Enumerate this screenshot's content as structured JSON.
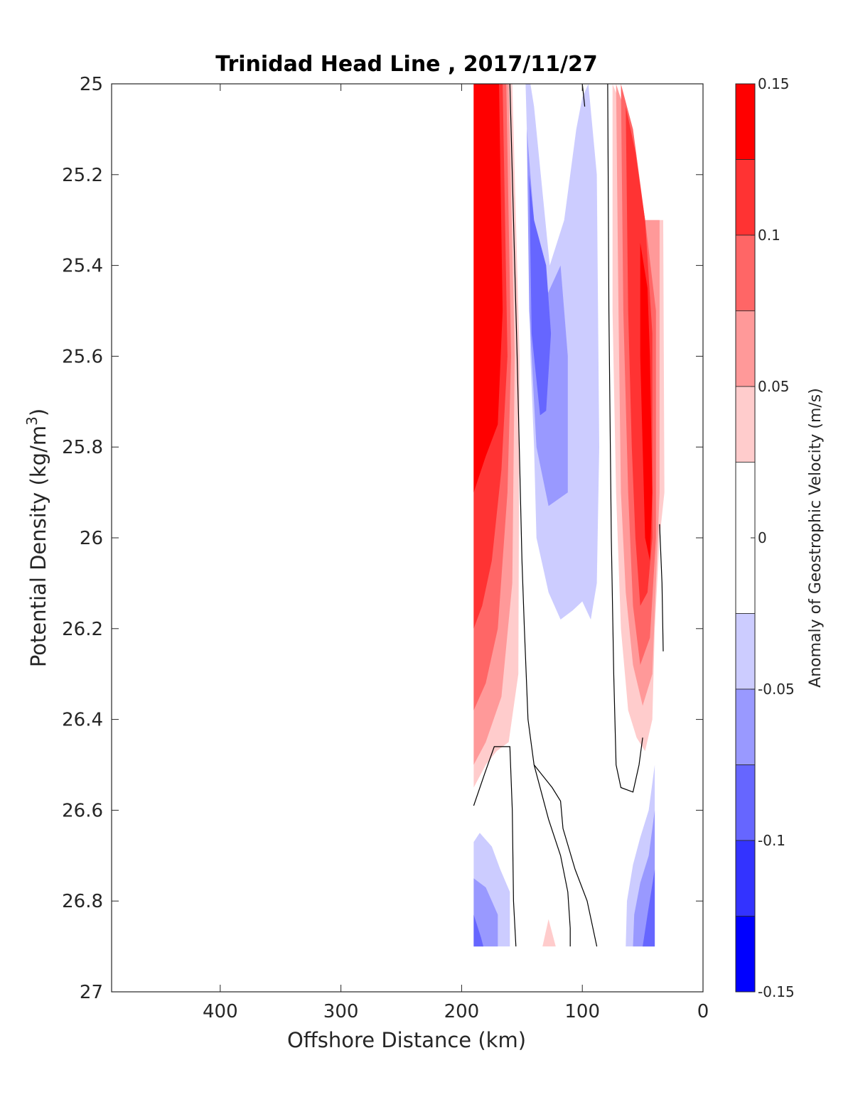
{
  "chart_data": {
    "type": "heatmap",
    "title": "Trinidad Head Line , 2017/11/27",
    "xlabel": "Offshore Distance (km)",
    "ylabel": "Potential Density (kg/m",
    "ylabel_superscript": "3",
    "ylabel_close": ")",
    "colorbar_label": "Anomaly of Geostrophic Velocity (m/s)",
    "xlim": [
      490,
      0
    ],
    "ylim": [
      25,
      27
    ],
    "y_reversed": true,
    "grid": false,
    "x_ticks": [
      400,
      300,
      200,
      100,
      0
    ],
    "y_ticks": [
      25,
      25.2,
      25.4,
      25.6,
      25.8,
      26,
      26.2,
      26.4,
      26.6,
      26.8,
      27
    ],
    "x_tick_labels": [
      "400",
      "300",
      "200",
      "100",
      "0"
    ],
    "y_tick_labels": [
      "25",
      "25.2",
      "25.4",
      "25.6",
      "25.8",
      "26",
      "26.2",
      "26.4",
      "26.6",
      "26.8",
      "27"
    ],
    "colorbar": {
      "range": [
        -0.15,
        0.15
      ],
      "levels": [
        -0.15,
        -0.125,
        -0.1,
        -0.075,
        -0.05,
        -0.025,
        0.025,
        0.05,
        0.075,
        0.1,
        0.125,
        0.15
      ],
      "tick_labels": [
        "0.15",
        "0.1",
        "0.05",
        "0",
        "-0.05",
        "-0.1",
        "-0.15"
      ],
      "tick_values": [
        0.15,
        0.1,
        0.05,
        0,
        -0.05,
        -0.1,
        -0.15
      ],
      "bands": [
        {
          "from": 0.125,
          "to": 0.15,
          "color": "#ff0000"
        },
        {
          "from": 0.1,
          "to": 0.125,
          "color": "#ff3333"
        },
        {
          "from": 0.075,
          "to": 0.1,
          "color": "#ff6666"
        },
        {
          "from": 0.05,
          "to": 0.075,
          "color": "#ff9999"
        },
        {
          "from": 0.025,
          "to": 0.05,
          "color": "#ffcccc"
        },
        {
          "from": -0.025,
          "to": 0.025,
          "color": "#ffffff"
        },
        {
          "from": -0.05,
          "to": -0.025,
          "color": "#ccccff"
        },
        {
          "from": -0.075,
          "to": -0.05,
          "color": "#9999ff"
        },
        {
          "from": -0.1,
          "to": -0.075,
          "color": "#6666ff"
        },
        {
          "from": -0.125,
          "to": -0.1,
          "color": "#3333ff"
        },
        {
          "from": -0.15,
          "to": -0.125,
          "color": "#0000ff"
        }
      ]
    },
    "regions": [
      {
        "name": "offshore-positive-band",
        "color": "#ffcccc",
        "points": [
          [
            190,
            25
          ],
          [
            158,
            25
          ],
          [
            152,
            25.6
          ],
          [
            153,
            26.3
          ],
          [
            161,
            26.45
          ],
          [
            171,
            26.47
          ],
          [
            180,
            26.5
          ],
          [
            190,
            26.55
          ]
        ]
      },
      {
        "name": "offshore-positive-band",
        "color": "#ff9999",
        "points": [
          [
            190,
            25
          ],
          [
            161,
            25
          ],
          [
            156,
            25.6
          ],
          [
            158,
            26.1
          ],
          [
            167,
            26.35
          ],
          [
            180,
            26.45
          ],
          [
            190,
            26.5
          ]
        ]
      },
      {
        "name": "offshore-positive-band",
        "color": "#ff6666",
        "points": [
          [
            190,
            25
          ],
          [
            163,
            25
          ],
          [
            159,
            25.6
          ],
          [
            162,
            25.9
          ],
          [
            170,
            26.2
          ],
          [
            180,
            26.32
          ],
          [
            190,
            26.38
          ]
        ]
      },
      {
        "name": "offshore-positive-band",
        "color": "#ff3333",
        "points": [
          [
            190,
            25
          ],
          [
            166,
            25
          ],
          [
            162,
            25.6
          ],
          [
            167,
            25.85
          ],
          [
            175,
            26.05
          ],
          [
            183,
            26.15
          ],
          [
            190,
            26.2
          ]
        ]
      },
      {
        "name": "offshore-positive-core",
        "color": "#ff0000",
        "points": [
          [
            190,
            25
          ],
          [
            169,
            25
          ],
          [
            166,
            25.5
          ],
          [
            170,
            25.75
          ],
          [
            180,
            25.82
          ],
          [
            190,
            25.9
          ]
        ]
      },
      {
        "name": "central-negative-band",
        "color": "#ccccff",
        "points": [
          [
            147,
            25
          ],
          [
            145,
            25.2
          ],
          [
            143,
            25.6
          ],
          [
            140,
            25.8
          ],
          [
            138,
            26
          ],
          [
            128,
            26.12
          ],
          [
            118,
            26.18
          ],
          [
            108,
            26.16
          ],
          [
            100,
            26.14
          ],
          [
            93,
            26.18
          ],
          [
            88,
            26.1
          ],
          [
            86,
            25.8
          ],
          [
            88,
            25.2
          ],
          [
            95,
            25
          ],
          [
            100,
            25.03
          ],
          [
            105,
            25.1
          ],
          [
            115,
            25.3
          ],
          [
            127,
            25.4
          ],
          [
            140,
            25.05
          ],
          [
            143,
            25
          ]
        ]
      },
      {
        "name": "central-negative-band",
        "color": "#9999ff",
        "points": [
          [
            146,
            25.1
          ],
          [
            144,
            25.5
          ],
          [
            138,
            25.8
          ],
          [
            128,
            25.93
          ],
          [
            112,
            25.9
          ],
          [
            112,
            25.6
          ],
          [
            118,
            25.4
          ],
          [
            130,
            25.47
          ],
          [
            140,
            25.3
          ]
        ]
      },
      {
        "name": "central-negative-core",
        "color": "#6666ff",
        "points": [
          [
            144,
            25.2
          ],
          [
            142,
            25.55
          ],
          [
            135,
            25.73
          ],
          [
            130,
            25.72
          ],
          [
            126,
            25.55
          ],
          [
            130,
            25.4
          ],
          [
            140,
            25.3
          ]
        ]
      },
      {
        "name": "nearshore-positive-band",
        "color": "#ffcccc",
        "points": [
          [
            75,
            25
          ],
          [
            60,
            25.1
          ],
          [
            48,
            25.3
          ],
          [
            33,
            25.3
          ],
          [
            32,
            25.9
          ],
          [
            36,
            26
          ],
          [
            40,
            26.2
          ],
          [
            42,
            26.4
          ],
          [
            48,
            26.47
          ],
          [
            55,
            26.44
          ],
          [
            62,
            26.38
          ],
          [
            68,
            26.2
          ],
          [
            72,
            25.9
          ],
          [
            75,
            25.5
          ]
        ]
      },
      {
        "name": "nearshore-positive-band",
        "color": "#ff9999",
        "points": [
          [
            72,
            25
          ],
          [
            60,
            25.1
          ],
          [
            48,
            25.3
          ],
          [
            36,
            25.3
          ],
          [
            36,
            25.9
          ],
          [
            42,
            26.3
          ],
          [
            50,
            26.37
          ],
          [
            58,
            26.28
          ],
          [
            64,
            26.12
          ],
          [
            68,
            25.9
          ],
          [
            70,
            25.5
          ]
        ]
      },
      {
        "name": "nearshore-positive-band",
        "color": "#ff6666",
        "points": [
          [
            68,
            25
          ],
          [
            58,
            25.1
          ],
          [
            48,
            25.3
          ],
          [
            39,
            25.5
          ],
          [
            39,
            26
          ],
          [
            44,
            26.22
          ],
          [
            52,
            26.28
          ],
          [
            58,
            26.15
          ],
          [
            62,
            25.9
          ],
          [
            66,
            25.5
          ]
        ]
      },
      {
        "name": "nearshore-positive-band",
        "color": "#ff3333",
        "points": [
          [
            64,
            25.05
          ],
          [
            56,
            25.15
          ],
          [
            48,
            25.3
          ],
          [
            42,
            25.55
          ],
          [
            42,
            26
          ],
          [
            46,
            26.12
          ],
          [
            52,
            26.15
          ],
          [
            56,
            26
          ],
          [
            59,
            25.8
          ],
          [
            62,
            25.5
          ]
        ]
      },
      {
        "name": "nearshore-positive-core",
        "color": "#ff0000",
        "points": [
          [
            52,
            25.35
          ],
          [
            46,
            25.45
          ],
          [
            44,
            25.6
          ],
          [
            42,
            25.9
          ],
          [
            44,
            26.05
          ],
          [
            48,
            26
          ],
          [
            50,
            25.8
          ],
          [
            52,
            25.6
          ]
        ]
      },
      {
        "name": "deep-offshore-negative-band",
        "color": "#ccccff",
        "points": [
          [
            190,
            26.67
          ],
          [
            185,
            26.65
          ],
          [
            175,
            26.68
          ],
          [
            168,
            26.73
          ],
          [
            160,
            26.78
          ],
          [
            160,
            26.9
          ],
          [
            190,
            26.9
          ]
        ]
      },
      {
        "name": "deep-offshore-negative-band",
        "color": "#9999ff",
        "points": [
          [
            190,
            26.75
          ],
          [
            180,
            26.77
          ],
          [
            175,
            26.8
          ],
          [
            170,
            26.83
          ],
          [
            170,
            26.9
          ],
          [
            190,
            26.9
          ]
        ]
      },
      {
        "name": "deep-offshore-negative-core",
        "color": "#6666ff",
        "points": [
          [
            190,
            26.83
          ],
          [
            184,
            26.88
          ],
          [
            182,
            26.9
          ],
          [
            190,
            26.9
          ]
        ]
      },
      {
        "name": "deep-nearshore-negative-band",
        "color": "#ccccff",
        "points": [
          [
            40,
            26.5
          ],
          [
            45,
            26.6
          ],
          [
            52,
            26.66
          ],
          [
            58,
            26.72
          ],
          [
            63,
            26.8
          ],
          [
            64,
            26.9
          ],
          [
            40,
            26.9
          ]
        ]
      },
      {
        "name": "deep-nearshore-negative-band",
        "color": "#9999ff",
        "points": [
          [
            40,
            26.6
          ],
          [
            45,
            26.7
          ],
          [
            52,
            26.76
          ],
          [
            57,
            26.83
          ],
          [
            58,
            26.9
          ],
          [
            40,
            26.9
          ]
        ]
      },
      {
        "name": "deep-nearshore-negative-core",
        "color": "#6666ff",
        "points": [
          [
            40,
            26.73
          ],
          [
            46,
            26.83
          ],
          [
            50,
            26.9
          ],
          [
            40,
            26.9
          ]
        ]
      },
      {
        "name": "deep-positive-patch",
        "color": "#ffcccc",
        "points": [
          [
            133,
            26.9
          ],
          [
            128,
            26.84
          ],
          [
            122,
            26.9
          ]
        ]
      }
    ],
    "zero_contours": [
      [
        [
          160,
          25
        ],
        [
          154,
          25.6
        ],
        [
          150,
          26.05
        ],
        [
          148,
          26.2
        ],
        [
          145,
          26.4
        ],
        [
          140,
          26.5
        ],
        [
          128,
          26.62
        ],
        [
          118,
          26.7
        ],
        [
          112,
          26.78
        ],
        [
          110,
          26.86
        ],
        [
          110,
          26.9
        ]
      ],
      [
        [
          79,
          25
        ],
        [
          78,
          25.5
        ],
        [
          76,
          26
        ],
        [
          74,
          26.3
        ],
        [
          72,
          26.5
        ],
        [
          68,
          26.55
        ],
        [
          58,
          26.56
        ],
        [
          53,
          26.5
        ],
        [
          50,
          26.44
        ]
      ],
      [
        [
          190,
          26.59
        ],
        [
          181,
          26.52
        ],
        [
          173,
          26.46
        ],
        [
          160,
          26.46
        ],
        [
          158,
          26.6
        ],
        [
          157,
          26.8
        ],
        [
          155,
          26.9
        ]
      ],
      [
        [
          100,
          25
        ],
        [
          98,
          25.05
        ]
      ],
      [
        [
          140,
          26.5
        ],
        [
          125,
          26.55
        ],
        [
          118,
          26.58
        ],
        [
          116,
          26.64
        ],
        [
          106,
          26.73
        ],
        [
          96,
          26.8
        ],
        [
          88,
          26.9
        ]
      ],
      [
        [
          36,
          25.97
        ],
        [
          34,
          26.1
        ],
        [
          33,
          26.25
        ]
      ]
    ]
  }
}
